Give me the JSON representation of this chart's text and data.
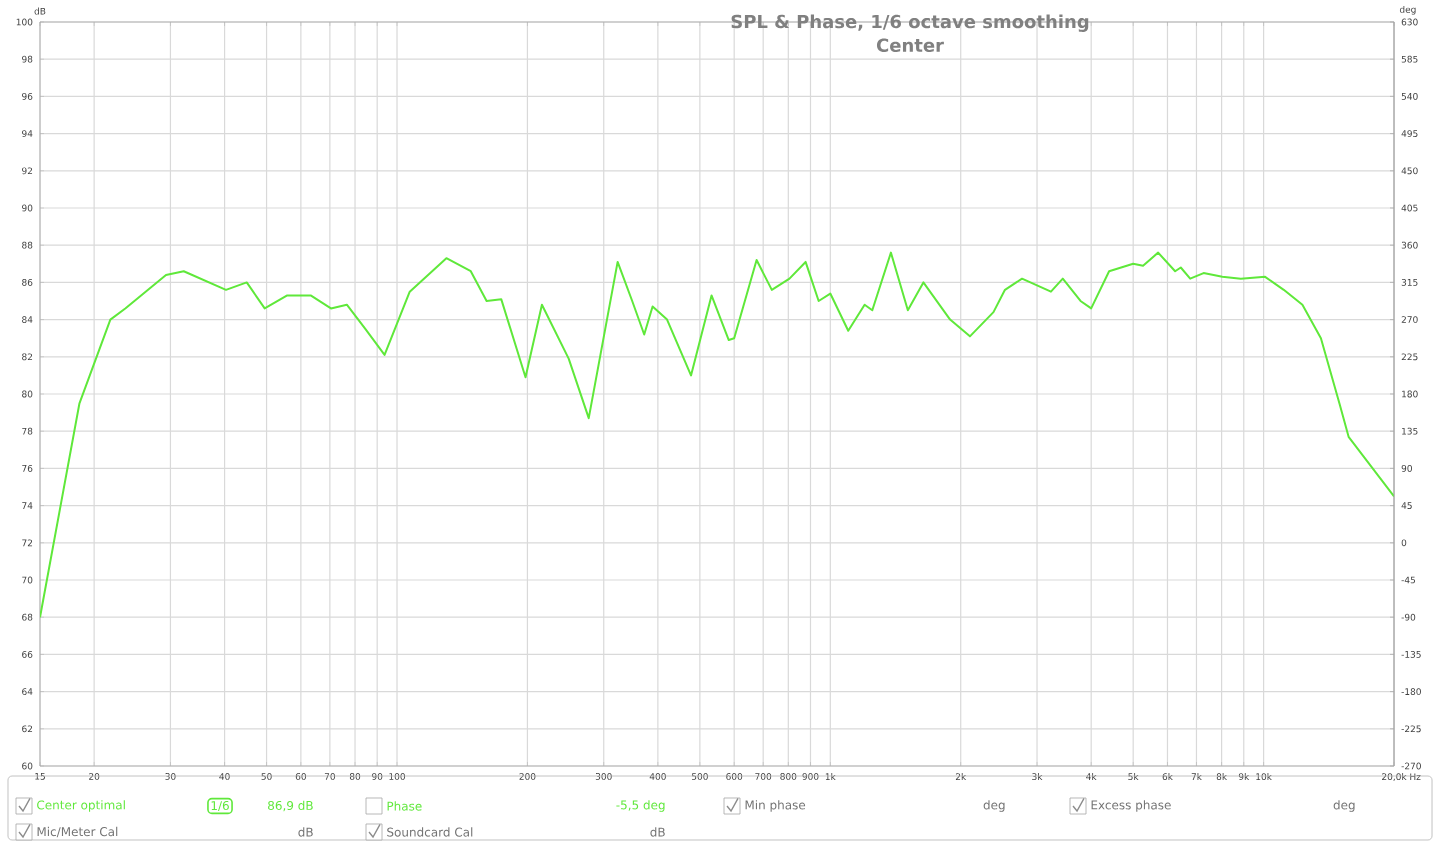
{
  "chart_data": {
    "type": "line",
    "title": "SPL & Phase, 1/6 octave smoothing",
    "subtitle": "Center",
    "xlabel": "Hz",
    "ylabel": "dB",
    "y2label": "deg",
    "log": "x",
    "grid": true,
    "legend": "bottom",
    "marker": "none",
    "line_style": "solid",
    "xlim": [
      15,
      20000
    ],
    "ylim": [
      60,
      100
    ],
    "y2lim": [
      -270,
      630
    ],
    "xticks": [
      15,
      20,
      30,
      40,
      50,
      60,
      70,
      80,
      90,
      100,
      200,
      300,
      400,
      500,
      600,
      700,
      800,
      900,
      {
        "value": 1000,
        "label": "1k"
      },
      {
        "value": 2000,
        "label": "2k"
      },
      {
        "value": 3000,
        "label": "3k"
      },
      {
        "value": 4000,
        "label": "4k"
      },
      {
        "value": 5000,
        "label": "5k"
      },
      {
        "value": 6000,
        "label": "6k"
      },
      {
        "value": 7000,
        "label": "7k"
      },
      {
        "value": 8000,
        "label": "8k"
      },
      {
        "value": 9000,
        "label": "9k"
      },
      {
        "value": 10000,
        "label": "10k"
      },
      {
        "value": 20000,
        "label": "20,0k"
      }
    ],
    "yticks": [
      60,
      62,
      64,
      66,
      68,
      70,
      72,
      74,
      76,
      78,
      80,
      82,
      84,
      86,
      88,
      90,
      92,
      94,
      96,
      98,
      100
    ],
    "y2ticks": [
      -270,
      -225,
      -180,
      -135,
      -90,
      -45,
      0,
      45,
      90,
      135,
      180,
      225,
      270,
      315,
      360,
      405,
      450,
      495,
      540,
      585,
      630
    ],
    "series": [
      {
        "name": "Center optimal",
        "color": "#5fe83a",
        "x": [
          15,
          18.5,
          21.8,
          23.6,
          29.3,
          32.2,
          40.3,
          45,
          49.5,
          55.8,
          63.2,
          70.4,
          76.6,
          84.5,
          93.6,
          107,
          130,
          148,
          161,
          174,
          198,
          216,
          249,
          277,
          323,
          349,
          372,
          389,
          420,
          477,
          532,
          583,
          600,
          676,
          733,
          805,
          877,
          940,
          1000,
          1100,
          1200,
          1250,
          1380,
          1510,
          1640,
          1890,
          2100,
          2380,
          2530,
          2770,
          3230,
          3440,
          3780,
          4000,
          4400,
          5000,
          5270,
          5710,
          6250,
          6440,
          6770,
          7270,
          8030,
          8860,
          10080,
          11130,
          12290,
          13560,
          14960,
          15710,
          20000
        ],
        "values": [
          68,
          79.5,
          84,
          84.6,
          86.4,
          86.6,
          85.6,
          86,
          84.6,
          85.3,
          85.3,
          84.6,
          84.8,
          83.5,
          82.1,
          85.5,
          87.3,
          86.6,
          85,
          85.1,
          80.9,
          84.8,
          81.9,
          78.7,
          87.1,
          85,
          83.2,
          84.7,
          84,
          81,
          85.3,
          82.9,
          83,
          87.2,
          85.6,
          86.2,
          87.1,
          85,
          85.4,
          83.4,
          84.8,
          84.5,
          87.6,
          84.5,
          86,
          84,
          83.1,
          84.4,
          85.6,
          86.2,
          85.5,
          86.2,
          85,
          84.6,
          86.6,
          87,
          86.9,
          87.6,
          86.6,
          86.8,
          86.2,
          86.5,
          86.3,
          86.2,
          86.3,
          85.6,
          84.8,
          83,
          79.5,
          77.7,
          74.5
        ]
      }
    ],
    "annotations": [
      "1/6",
      "86,9 dB",
      "Phase",
      "-5,5 deg",
      "Min phase",
      "deg",
      "Excess phase",
      "deg",
      "Mic/Meter Cal",
      "dB",
      "Soundcard Cal",
      "dB"
    ]
  }
}
